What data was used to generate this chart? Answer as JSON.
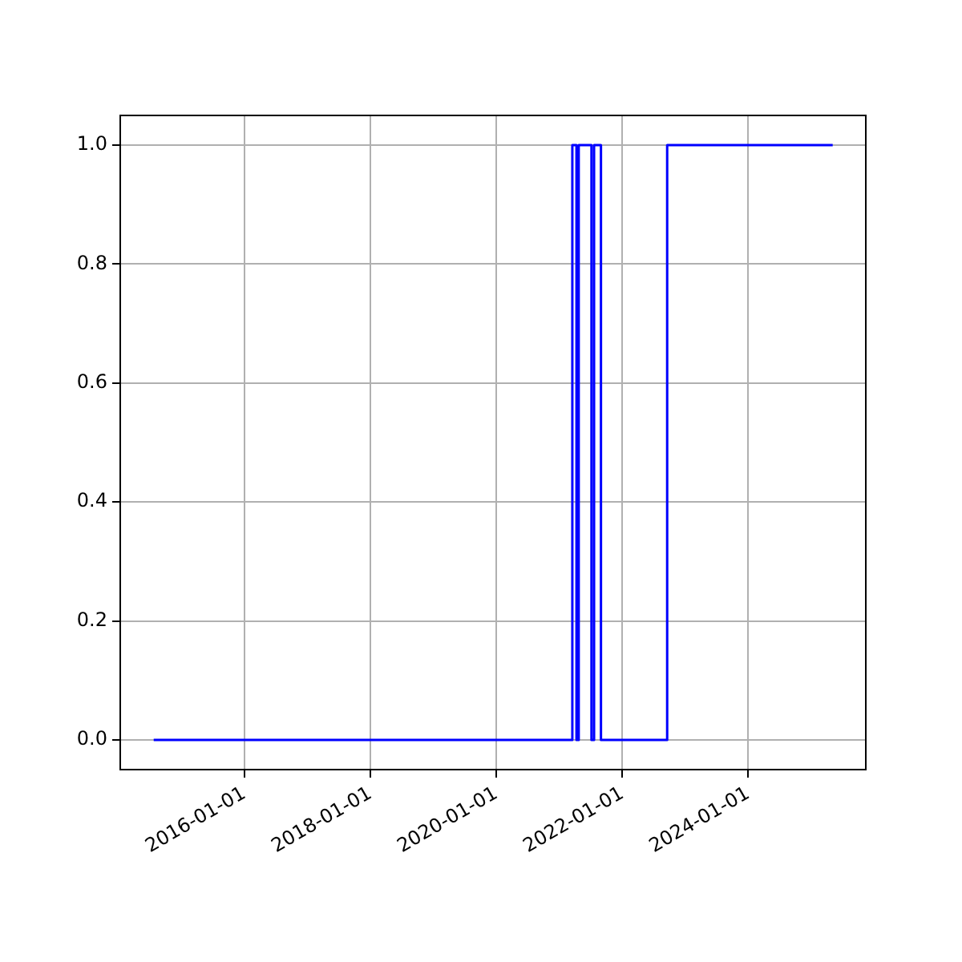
{
  "chart_data": {
    "type": "step",
    "x": [
      "2014-07-24",
      "2021-03-17",
      "2021-04-10",
      "2021-04-23",
      "2021-07-06",
      "2021-07-21",
      "2021-08-30",
      "2022-09-18",
      "2025-05-05"
    ],
    "series": [
      {
        "color": "#0000ff",
        "values": [
          0,
          1,
          0,
          1,
          0,
          1,
          0,
          1,
          1
        ]
      }
    ],
    "xlim": [
      "2014-01-11",
      "2025-11-13"
    ],
    "xticks": [
      "2016-01-01",
      "2018-01-01",
      "2020-01-01",
      "2022-01-01",
      "2024-01-01"
    ],
    "ylim": [
      -0.05,
      1.05
    ],
    "yticks": [
      {
        "value": 0,
        "label": "0.0"
      },
      {
        "value": 0.2,
        "label": "0.2"
      },
      {
        "value": 0.4,
        "label": "0.4"
      },
      {
        "value": 0.6,
        "label": "0.6"
      },
      {
        "value": 0.8,
        "label": "0.8"
      },
      {
        "value": 1,
        "label": "1.0"
      }
    ],
    "grid": true,
    "legend": false,
    "marker": "none",
    "line_style": "solid"
  }
}
